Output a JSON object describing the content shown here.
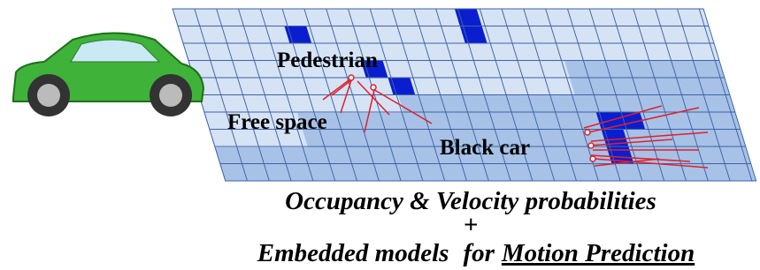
{
  "labels": {
    "pedestrian": "Pedestrian",
    "free_space": "Free space",
    "black_car": "Black car"
  },
  "caption": {
    "line1": "Occupancy & Velocity probabilities",
    "plus": "+",
    "line3_a": "Embedded models",
    "line3_b": "for",
    "line3_c": "Motion Prediction"
  }
}
